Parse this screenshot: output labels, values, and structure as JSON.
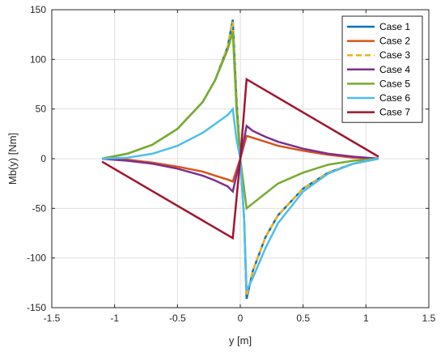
{
  "chart_data": {
    "type": "line",
    "title": "",
    "xlabel": "y [m]",
    "ylabel": "Mb(y) [Nm]",
    "xlim": [
      -1.5,
      1.5
    ],
    "ylim": [
      -150,
      150
    ],
    "xticks": [
      -1.5,
      -1,
      -0.5,
      0,
      0.5,
      1,
      1.5
    ],
    "yticks": [
      -150,
      -100,
      -50,
      0,
      50,
      100,
      150
    ],
    "xtick_labels": [
      "-1.5",
      "-1",
      "-0.5",
      "0",
      "0.5",
      "1",
      "1.5"
    ],
    "ytick_labels": [
      "-150",
      "-100",
      "-50",
      "0",
      "50",
      "100",
      "150"
    ],
    "grid": true,
    "legend_position": "top-right",
    "series": [
      {
        "name": "Case 1",
        "color": "#0072BD",
        "style": "solid",
        "x": [
          -1.1,
          -0.9,
          -0.7,
          -0.5,
          -0.3,
          -0.2,
          -0.1,
          -0.06,
          -0.03,
          0,
          0.03,
          0.05,
          0.1,
          0.2,
          0.3,
          0.5,
          0.7,
          0.9,
          1.1
        ],
        "y": [
          0,
          5,
          14,
          30,
          57,
          79,
          113,
          140,
          60,
          0,
          -60,
          -141,
          -113,
          -79,
          -57,
          -30,
          -14,
          -5,
          0
        ]
      },
      {
        "name": "Case 2",
        "color": "#D95319",
        "style": "solid",
        "x": [
          -1.1,
          -0.9,
          -0.7,
          -0.5,
          -0.3,
          -0.2,
          -0.1,
          -0.06,
          0,
          0.05,
          0.1,
          0.2,
          0.3,
          0.5,
          0.7,
          0.9,
          1.1
        ],
        "y": [
          0,
          -1,
          -4,
          -8,
          -13,
          -17,
          -21,
          -23,
          0,
          23,
          21,
          17,
          13,
          8,
          4,
          1,
          0
        ]
      },
      {
        "name": "Case 3",
        "color": "#EDB120",
        "style": "dashed",
        "x": [
          -1.1,
          -0.9,
          -0.7,
          -0.5,
          -0.3,
          -0.2,
          -0.1,
          -0.06,
          -0.03,
          0,
          0.03,
          0.05,
          0.1,
          0.2,
          0.3,
          0.5,
          0.7,
          0.9,
          1.1
        ],
        "y": [
          0,
          5,
          14,
          30,
          57,
          79,
          113,
          138,
          60,
          0,
          -60,
          -138,
          -113,
          -79,
          -57,
          -30,
          -14,
          -5,
          0
        ]
      },
      {
        "name": "Case 4",
        "color": "#7E2F8E",
        "style": "solid",
        "x": [
          -1.1,
          -0.9,
          -0.7,
          -0.5,
          -0.3,
          -0.2,
          -0.1,
          -0.06,
          0,
          0.05,
          0.1,
          0.2,
          0.3,
          0.5,
          0.7,
          0.9,
          1.1
        ],
        "y": [
          0,
          -2,
          -5,
          -10,
          -17,
          -22,
          -28,
          -33,
          0,
          33,
          28,
          22,
          17,
          10,
          5,
          2,
          0
        ]
      },
      {
        "name": "Case 5",
        "color": "#77AC30",
        "style": "solid",
        "x": [
          -1.1,
          -0.9,
          -0.7,
          -0.5,
          -0.3,
          -0.2,
          -0.1,
          -0.06,
          -0.03,
          0,
          0.03,
          0.05,
          0.1,
          0.2,
          0.3,
          0.5,
          0.7,
          0.9,
          1.1
        ],
        "y": [
          0,
          5,
          14,
          30,
          57,
          79,
          110,
          128,
          50,
          0,
          -30,
          -50,
          -45,
          -35,
          -25,
          -14,
          -6,
          -2,
          0
        ]
      },
      {
        "name": "Case 6",
        "color": "#4DBEEE",
        "style": "solid",
        "x": [
          -1.1,
          -0.9,
          -0.7,
          -0.5,
          -0.3,
          -0.2,
          -0.1,
          -0.06,
          -0.03,
          0,
          0.03,
          0.05,
          0.1,
          0.2,
          0.3,
          0.5,
          0.7,
          0.9,
          1.1
        ],
        "y": [
          0,
          1,
          5,
          13,
          26,
          35,
          44,
          50,
          20,
          0,
          -60,
          -133,
          -120,
          -90,
          -65,
          -33,
          -15,
          -5,
          0
        ]
      },
      {
        "name": "Case 7",
        "color": "#A2142F",
        "style": "solid",
        "x": [
          -1.1,
          -0.06,
          0,
          0.05,
          1.1
        ],
        "y": [
          -3,
          -80,
          0,
          80,
          2
        ]
      }
    ]
  }
}
